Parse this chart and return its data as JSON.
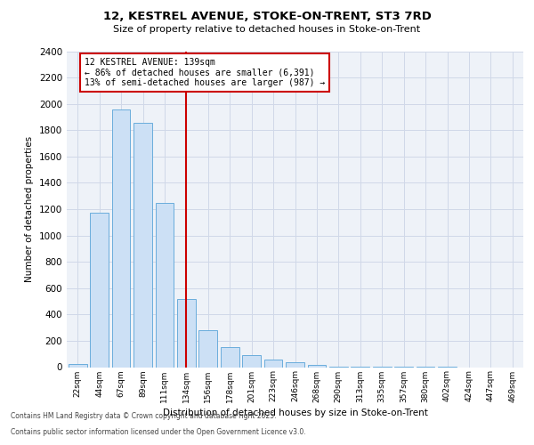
{
  "title_line1": "12, KESTREL AVENUE, STOKE-ON-TRENT, ST3 7RD",
  "title_line2": "Size of property relative to detached houses in Stoke-on-Trent",
  "xlabel": "Distribution of detached houses by size in Stoke-on-Trent",
  "ylabel": "Number of detached properties",
  "annotation_line1": "12 KESTREL AVENUE: 139sqm",
  "annotation_line2": "← 86% of detached houses are smaller (6,391)",
  "annotation_line3": "13% of semi-detached houses are larger (987) →",
  "footer_line1": "Contains HM Land Registry data © Crown copyright and database right 2025.",
  "footer_line2": "Contains public sector information licensed under the Open Government Licence v3.0.",
  "categories": [
    "22sqm",
    "44sqm",
    "67sqm",
    "89sqm",
    "111sqm",
    "134sqm",
    "156sqm",
    "178sqm",
    "201sqm",
    "223sqm",
    "246sqm",
    "268sqm",
    "290sqm",
    "313sqm",
    "335sqm",
    "357sqm",
    "380sqm",
    "402sqm",
    "424sqm",
    "447sqm",
    "469sqm"
  ],
  "values": [
    25,
    1170,
    1960,
    1855,
    1245,
    515,
    280,
    155,
    90,
    55,
    40,
    15,
    5,
    5,
    3,
    2,
    1,
    1,
    0,
    0,
    0
  ],
  "vline_index": 5,
  "bar_color": "#cce0f5",
  "bar_edge_color": "#6aaddc",
  "vline_color": "#cc0000",
  "annotation_box_color": "#cc0000",
  "ylim": [
    0,
    2400
  ],
  "yticks": [
    0,
    200,
    400,
    600,
    800,
    1000,
    1200,
    1400,
    1600,
    1800,
    2000,
    2200,
    2400
  ],
  "grid_color": "#d0d8e8",
  "background_color": "#eef2f8"
}
